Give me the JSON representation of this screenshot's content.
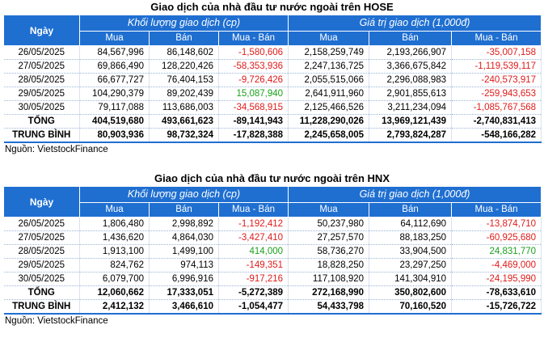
{
  "colors": {
    "header_bg": "#1f6fd1",
    "negative": "#e01a1a",
    "positive": "#1aa01a"
  },
  "hose": {
    "title": "Giao dịch của nhà đầu tư nước ngoài trên HOSE",
    "date_header": "Ngày",
    "group1": "Khối lượng giao dịch (cp)",
    "group2": "Giá trị giao dịch (1,000đ)",
    "sub": [
      "Mua",
      "Bán",
      "Mua - Bán",
      "Mua",
      "Bán",
      "Mua - Bán"
    ],
    "rows": [
      {
        "date": "26/05/2025",
        "v1": "84,567,996",
        "v2": "86,148,602",
        "v3": "-1,580,606",
        "v4": "2,158,259,749",
        "v5": "2,193,266,907",
        "v6": "-35,007,158"
      },
      {
        "date": "27/05/2025",
        "v1": "69,866,490",
        "v2": "128,220,426",
        "v3": "-58,353,936",
        "v4": "2,247,136,725",
        "v5": "3,366,675,842",
        "v6": "-1,119,539,117"
      },
      {
        "date": "28/05/2025",
        "v1": "66,677,727",
        "v2": "76,404,153",
        "v3": "-9,726,426",
        "v4": "2,055,515,066",
        "v5": "2,296,088,983",
        "v6": "-240,573,917"
      },
      {
        "date": "29/05/2025",
        "v1": "104,290,379",
        "v2": "89,202,439",
        "v3": "15,087,940",
        "v4": "2,641,911,960",
        "v5": "2,901,855,613",
        "v6": "-259,943,653"
      },
      {
        "date": "30/05/2025",
        "v1": "79,117,088",
        "v2": "113,686,003",
        "v3": "-34,568,915",
        "v4": "2,125,466,526",
        "v5": "3,211,234,094",
        "v6": "-1,085,767,568"
      }
    ],
    "total": {
      "label": "TỔNG",
      "v1": "404,519,680",
      "v2": "493,661,623",
      "v3": "-89,141,943",
      "v4": "11,228,290,026",
      "v5": "13,969,121,439",
      "v6": "-2,740,831,413"
    },
    "avg": {
      "label": "TRUNG BÌNH",
      "v1": "80,903,936",
      "v2": "98,732,324",
      "v3": "-17,828,388",
      "v4": "2,245,658,005",
      "v5": "2,793,824,287",
      "v6": "-548,166,282"
    },
    "source": "Nguồn: VietstockFinance"
  },
  "hnx": {
    "title": "Giao dịch của nhà đầu tư nước ngoài trên HNX",
    "date_header": "Ngày",
    "group1": "Khối lượng giao dịch (cp)",
    "group2": "Giá trị giao dịch (1,000đ)",
    "sub": [
      "Mua",
      "Bán",
      "Mua - Bán",
      "Mua",
      "Bán",
      "Mua - Bán"
    ],
    "rows": [
      {
        "date": "26/05/2025",
        "v1": "1,806,480",
        "v2": "2,998,892",
        "v3": "-1,192,412",
        "v4": "50,237,980",
        "v5": "64,112,690",
        "v6": "-13,874,710"
      },
      {
        "date": "27/05/2025",
        "v1": "1,436,620",
        "v2": "4,864,030",
        "v3": "-3,427,410",
        "v4": "27,257,570",
        "v5": "88,183,250",
        "v6": "-60,925,680"
      },
      {
        "date": "28/05/2025",
        "v1": "1,913,100",
        "v2": "1,499,100",
        "v3": "414,000",
        "v4": "58,736,270",
        "v5": "33,904,500",
        "v6": "24,831,770"
      },
      {
        "date": "29/05/2025",
        "v1": "824,762",
        "v2": "974,113",
        "v3": "-149,351",
        "v4": "18,828,250",
        "v5": "23,297,250",
        "v6": "-4,469,000"
      },
      {
        "date": "30/05/2025",
        "v1": "6,079,700",
        "v2": "6,996,916",
        "v3": "-917,216",
        "v4": "117,108,920",
        "v5": "141,304,910",
        "v6": "-24,195,990"
      }
    ],
    "total": {
      "label": "TỔNG",
      "v1": "12,060,662",
      "v2": "17,333,051",
      "v3": "-5,272,389",
      "v4": "272,168,990",
      "v5": "350,802,600",
      "v6": "-78,633,610"
    },
    "avg": {
      "label": "TRUNG BÌNH",
      "v1": "2,412,132",
      "v2": "3,466,610",
      "v3": "-1,054,477",
      "v4": "54,433,798",
      "v5": "70,160,520",
      "v6": "-15,726,722"
    },
    "source": "Nguồn: VietstockFinance"
  }
}
